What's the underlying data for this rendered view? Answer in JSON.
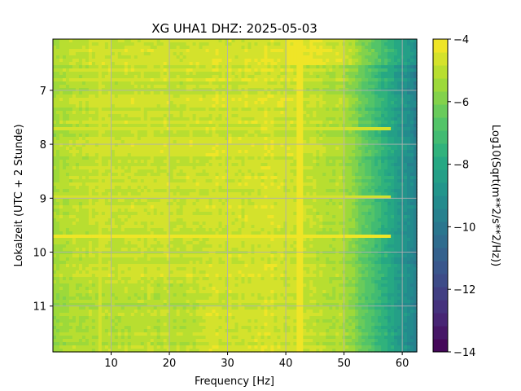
{
  "chart_data": {
    "type": "heatmap",
    "title": "XG UHA1  DHZ: 2025-05-03",
    "xlabel": "Frequency [Hz]",
    "ylabel": "Lokalzeit (UTC + 2 Stunde)",
    "xlim": [
      0,
      62.5
    ],
    "ylim": [
      11.85,
      6.05
    ],
    "xticks": [
      10,
      20,
      30,
      40,
      50,
      60
    ],
    "yticks": [
      7,
      8,
      9,
      10,
      11
    ],
    "grid": true,
    "colorbar": {
      "label": "Log10(Sqrt(m**2/s**2/Hz))",
      "range": [
        -14,
        -4
      ],
      "ticks": [
        -4,
        -6,
        -8,
        -10,
        -12,
        -14
      ],
      "tick_labels": [
        "−4",
        "−6",
        "−8",
        "−10",
        "−12",
        "−14"
      ],
      "levels": 24,
      "colormap": "viridis"
    },
    "features": [
      {
        "type": "vertical-line",
        "x": 42.3,
        "value": -4.2
      },
      {
        "type": "vertical-line",
        "x": 8.1,
        "value": -4.6
      },
      {
        "type": "vertical-line",
        "x": 16.6,
        "value": -4.9
      },
      {
        "type": "horizontal-band",
        "y": 9.7,
        "value": -4.3
      },
      {
        "type": "horizontal-band",
        "y": 8.98,
        "value": -4.5
      },
      {
        "type": "horizontal-band",
        "y": 7.7,
        "value": -4.6
      }
    ]
  }
}
